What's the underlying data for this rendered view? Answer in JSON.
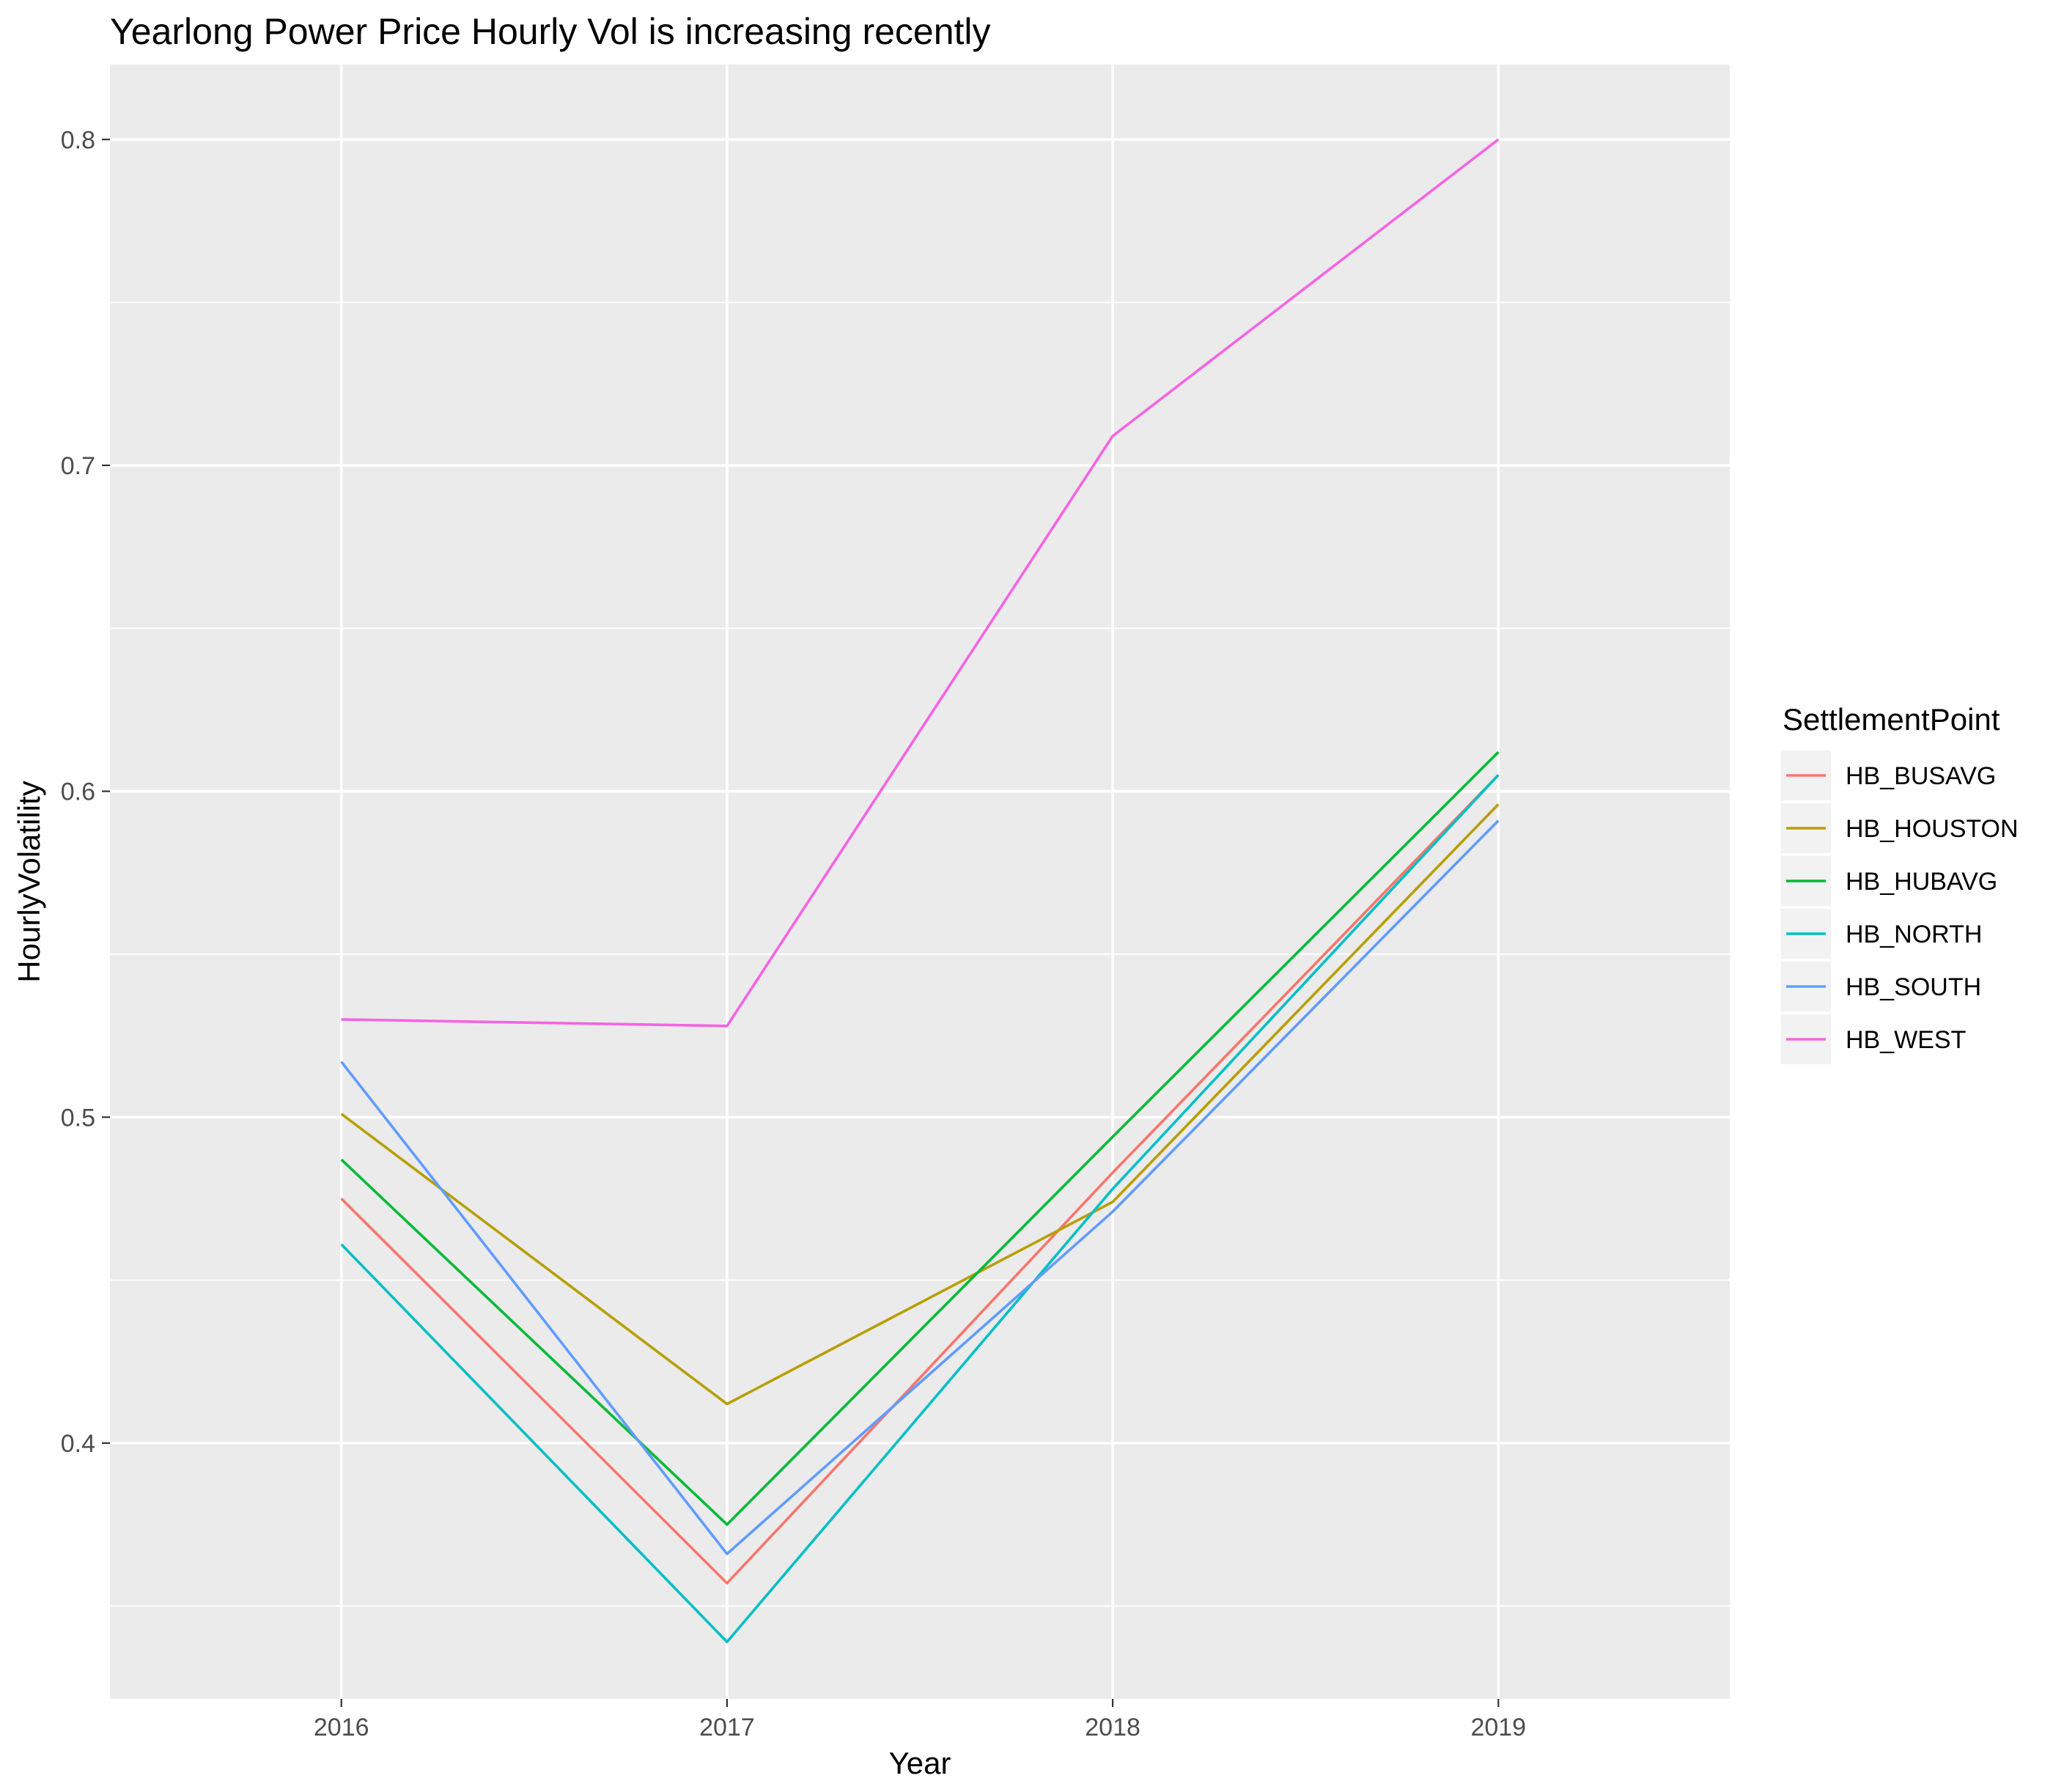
{
  "chart_data": {
    "type": "line",
    "title": "Yearlong Power Price Hourly Vol is increasing recently",
    "xlabel": "Year",
    "ylabel": "HourlyVolatility",
    "x": [
      2016,
      2017,
      2018,
      2019
    ],
    "x_tick_labels": [
      "2016",
      "2017",
      "2018",
      "2019"
    ],
    "xlim": [
      2015.4,
      2019.6
    ],
    "ylim": [
      0.3215,
      0.823
    ],
    "y_ticks": [
      0.4,
      0.5,
      0.6,
      0.7,
      0.8
    ],
    "y_tick_labels": [
      "0.4",
      "0.5",
      "0.6",
      "0.7",
      "0.8"
    ],
    "y_minor_ticks": [
      0.35,
      0.45,
      0.55,
      0.65,
      0.75
    ],
    "grid": true,
    "legend_title": "SettlementPoint",
    "legend_position": "right",
    "series": [
      {
        "name": "HB_BUSAVG",
        "color": "#F8766D",
        "values": [
          0.475,
          0.357,
          0.483,
          0.605
        ]
      },
      {
        "name": "HB_HOUSTON",
        "color": "#B79F00",
        "values": [
          0.501,
          0.412,
          0.474,
          0.596
        ]
      },
      {
        "name": "HB_HUBAVG",
        "color": "#00BA38",
        "values": [
          0.487,
          0.375,
          0.494,
          0.612
        ]
      },
      {
        "name": "HB_NORTH",
        "color": "#00BFC4",
        "values": [
          0.461,
          0.339,
          0.478,
          0.605
        ]
      },
      {
        "name": "HB_SOUTH",
        "color": "#619CFF",
        "values": [
          0.517,
          0.366,
          0.471,
          0.591
        ]
      },
      {
        "name": "HB_WEST",
        "color": "#F564E3",
        "values": [
          0.53,
          0.528,
          0.709,
          0.8
        ]
      }
    ]
  }
}
